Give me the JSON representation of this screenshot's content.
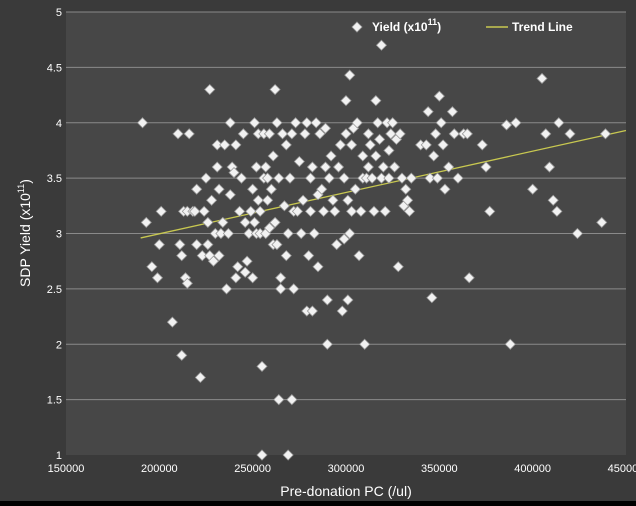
{
  "chart_data": {
    "type": "scatter",
    "title": "",
    "xlabel": "Pre-donation PC (/ul)",
    "ylabel": "SDP Yield (x10^11)",
    "ylabel_main": "SDP Yield (x10",
    "ylabel_sup": "11",
    "ylabel_close": ")",
    "xlim": [
      150000,
      450000
    ],
    "ylim": [
      1,
      5
    ],
    "x_ticks": [
      150000,
      200000,
      250000,
      300000,
      350000,
      400000,
      450000
    ],
    "x_tick_labels": [
      "150000",
      "200000",
      "250000",
      "300000",
      "350000",
      "400000",
      "450000"
    ],
    "y_ticks": [
      1,
      1.5,
      2,
      2.5,
      3,
      3.5,
      4,
      4.5,
      5
    ],
    "y_tick_labels": [
      "1",
      "1.5",
      "2",
      "2.5",
      "3",
      "3.5",
      "4",
      "4.5",
      "5"
    ],
    "grid": {
      "horizontal": true,
      "vertical": false
    },
    "legend_position": "top-right",
    "colors": {
      "plot_bg": "#474747",
      "frame_bg": "#3a3a3a",
      "marker_fill": "#f2f2f2",
      "marker_stroke": "#9a9a9a",
      "trend": "#c8c850",
      "gridline": "#8a8a8a",
      "text": "#ffffff"
    },
    "legend": [
      {
        "name": "Yield (x10^11)",
        "label_main": "Yield (x10",
        "label_sup": "11",
        "label_close": ")",
        "symbol": "diamond"
      },
      {
        "name": "Trend Line",
        "label_main": "Trend Line",
        "symbol": "line"
      }
    ],
    "series": [
      {
        "name": "Yield (x10^11)",
        "points": [
          [
            191000,
            4.0
          ],
          [
            193000,
            3.1
          ],
          [
            196000,
            2.7
          ],
          [
            199000,
            2.6
          ],
          [
            200000,
            2.9
          ],
          [
            201000,
            3.2
          ],
          [
            207000,
            2.2
          ],
          [
            210000,
            3.9
          ],
          [
            211000,
            2.9
          ],
          [
            212000,
            1.9
          ],
          [
            212000,
            2.8
          ],
          [
            213000,
            3.2
          ],
          [
            214000,
            2.6
          ],
          [
            215000,
            2.55
          ],
          [
            215000,
            3.2
          ],
          [
            216000,
            3.9
          ],
          [
            218000,
            3.2
          ],
          [
            219000,
            3.2
          ],
          [
            220000,
            2.9
          ],
          [
            220000,
            3.4
          ],
          [
            222000,
            1.7
          ],
          [
            223000,
            2.8
          ],
          [
            224000,
            3.2
          ],
          [
            225000,
            3.5
          ],
          [
            226000,
            3.1
          ],
          [
            226000,
            2.9
          ],
          [
            227000,
            2.8
          ],
          [
            227000,
            4.3
          ],
          [
            228000,
            3.3
          ],
          [
            229000,
            2.75
          ],
          [
            230000,
            3.0
          ],
          [
            231000,
            3.8
          ],
          [
            231000,
            3.6
          ],
          [
            232000,
            3.4
          ],
          [
            232000,
            2.8
          ],
          [
            233000,
            3.0
          ],
          [
            234000,
            3.1
          ],
          [
            235000,
            3.8
          ],
          [
            236000,
            2.5
          ],
          [
            237000,
            3.0
          ],
          [
            238000,
            3.35
          ],
          [
            238000,
            4.0
          ],
          [
            239000,
            3.6
          ],
          [
            240000,
            3.55
          ],
          [
            241000,
            2.6
          ],
          [
            241000,
            3.8
          ],
          [
            242000,
            2.7
          ],
          [
            243000,
            3.2
          ],
          [
            244000,
            3.5
          ],
          [
            245000,
            3.9
          ],
          [
            246000,
            3.1
          ],
          [
            246000,
            2.65
          ],
          [
            247000,
            2.75
          ],
          [
            248000,
            3.0
          ],
          [
            249000,
            3.2
          ],
          [
            250000,
            2.6
          ],
          [
            250000,
            3.4
          ],
          [
            251000,
            4.0
          ],
          [
            251000,
            3.1
          ],
          [
            252000,
            3.6
          ],
          [
            252000,
            3.0
          ],
          [
            253000,
            3.9
          ],
          [
            253000,
            3.3
          ],
          [
            254000,
            3.2
          ],
          [
            254000,
            3.0
          ],
          [
            255000,
            1.8
          ],
          [
            255000,
            1.0
          ],
          [
            256000,
            3.5
          ],
          [
            256000,
            3.9
          ],
          [
            257000,
            3.0
          ],
          [
            257000,
            3.6
          ],
          [
            258000,
            3.3
          ],
          [
            258000,
            3.5
          ],
          [
            259000,
            3.9
          ],
          [
            259000,
            3.05
          ],
          [
            260000,
            3.4
          ],
          [
            261000,
            2.9
          ],
          [
            261000,
            3.7
          ],
          [
            262000,
            4.3
          ],
          [
            262000,
            3.1
          ],
          [
            263000,
            2.9
          ],
          [
            263000,
            4.0
          ],
          [
            264000,
            3.5
          ],
          [
            264000,
            1.5
          ],
          [
            265000,
            2.6
          ],
          [
            265000,
            2.5
          ],
          [
            266000,
            3.9
          ],
          [
            267000,
            3.25
          ],
          [
            268000,
            3.8
          ],
          [
            268000,
            2.8
          ],
          [
            269000,
            3.0
          ],
          [
            269000,
            1.0
          ],
          [
            270000,
            3.5
          ],
          [
            271000,
            1.5
          ],
          [
            271000,
            3.9
          ],
          [
            272000,
            2.5
          ],
          [
            272000,
            3.2
          ],
          [
            273000,
            4.0
          ],
          [
            274000,
            3.2
          ],
          [
            275000,
            3.65
          ],
          [
            276000,
            3.0
          ],
          [
            277000,
            3.3
          ],
          [
            278000,
            3.9
          ],
          [
            279000,
            2.3
          ],
          [
            279000,
            4.0
          ],
          [
            280000,
            2.8
          ],
          [
            281000,
            3.5
          ],
          [
            281000,
            3.2
          ],
          [
            282000,
            2.3
          ],
          [
            282000,
            3.6
          ],
          [
            283000,
            3.0
          ],
          [
            284000,
            4.0
          ],
          [
            285000,
            2.7
          ],
          [
            285000,
            3.35
          ],
          [
            286000,
            3.9
          ],
          [
            287000,
            3.4
          ],
          [
            288000,
            3.2
          ],
          [
            289000,
            3.6
          ],
          [
            289000,
            3.95
          ],
          [
            290000,
            2.0
          ],
          [
            290000,
            2.4
          ],
          [
            291000,
            3.5
          ],
          [
            292000,
            3.7
          ],
          [
            293000,
            3.3
          ],
          [
            294000,
            3.2
          ],
          [
            295000,
            2.9
          ],
          [
            296000,
            3.6
          ],
          [
            297000,
            3.8
          ],
          [
            298000,
            2.3
          ],
          [
            299000,
            3.5
          ],
          [
            299000,
            2.95
          ],
          [
            300000,
            4.2
          ],
          [
            300000,
            3.9
          ],
          [
            301000,
            3.3
          ],
          [
            301000,
            2.4
          ],
          [
            302000,
            4.43
          ],
          [
            302000,
            3.0
          ],
          [
            303000,
            3.8
          ],
          [
            303000,
            3.2
          ],
          [
            304000,
            3.95
          ],
          [
            305000,
            3.4
          ],
          [
            306000,
            4.0
          ],
          [
            307000,
            2.8
          ],
          [
            308000,
            3.2
          ],
          [
            309000,
            3.7
          ],
          [
            309000,
            3.5
          ],
          [
            310000,
            2.0
          ],
          [
            311000,
            3.5
          ],
          [
            312000,
            3.9
          ],
          [
            312000,
            3.6
          ],
          [
            313000,
            3.8
          ],
          [
            314000,
            3.5
          ],
          [
            315000,
            3.2
          ],
          [
            316000,
            4.2
          ],
          [
            316000,
            3.7
          ],
          [
            317000,
            4.0
          ],
          [
            318000,
            3.85
          ],
          [
            319000,
            4.7
          ],
          [
            319000,
            3.5
          ],
          [
            320000,
            3.6
          ],
          [
            321000,
            3.2
          ],
          [
            322000,
            4.0
          ],
          [
            323000,
            3.75
          ],
          [
            323000,
            3.5
          ],
          [
            324000,
            3.9
          ],
          [
            325000,
            4.0
          ],
          [
            326000,
            3.6
          ],
          [
            327000,
            3.85
          ],
          [
            328000,
            2.7
          ],
          [
            329000,
            3.9
          ],
          [
            330000,
            3.5
          ],
          [
            331000,
            3.25
          ],
          [
            332000,
            3.4
          ],
          [
            333000,
            3.3
          ],
          [
            334000,
            3.2
          ],
          [
            335000,
            3.5
          ],
          [
            340000,
            3.8
          ],
          [
            343000,
            3.8
          ],
          [
            344000,
            4.1
          ],
          [
            345000,
            3.5
          ],
          [
            346000,
            2.42
          ],
          [
            347000,
            3.7
          ],
          [
            348000,
            3.9
          ],
          [
            349000,
            3.5
          ],
          [
            350000,
            4.24
          ],
          [
            351000,
            4.0
          ],
          [
            352000,
            3.8
          ],
          [
            353000,
            3.4
          ],
          [
            355000,
            3.6
          ],
          [
            357000,
            4.1
          ],
          [
            358000,
            3.9
          ],
          [
            360000,
            3.5
          ],
          [
            363000,
            3.9
          ],
          [
            365000,
            3.9
          ],
          [
            366000,
            2.6
          ],
          [
            373000,
            3.8
          ],
          [
            375000,
            3.6
          ],
          [
            377000,
            3.2
          ],
          [
            386000,
            3.98
          ],
          [
            388000,
            2.0
          ],
          [
            391000,
            4.0
          ],
          [
            400000,
            3.4
          ],
          [
            405000,
            4.4
          ],
          [
            407000,
            3.9
          ],
          [
            409000,
            3.6
          ],
          [
            411000,
            3.3
          ],
          [
            413000,
            3.2
          ],
          [
            414000,
            4.0
          ],
          [
            420000,
            3.9
          ],
          [
            424000,
            3.0
          ],
          [
            437000,
            3.1
          ],
          [
            439000,
            3.9
          ]
        ]
      }
    ],
    "trend_line": {
      "name": "Trend Line",
      "start": [
        190000,
        2.96
      ],
      "end": [
        450000,
        3.93
      ]
    }
  }
}
